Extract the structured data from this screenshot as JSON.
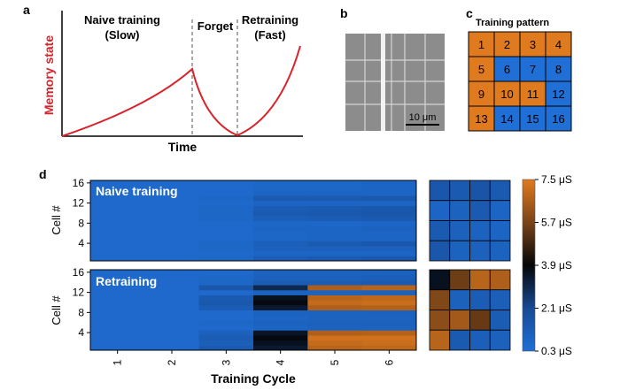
{
  "colors": {
    "curve": "#d8232a",
    "orange": "#e07a1e",
    "blue": "#1f6fd6",
    "grid_line": "#000000"
  },
  "panel_a": {
    "label": "a",
    "phase_naive": "Naive training",
    "phase_naive_sub": "(Slow)",
    "phase_forget": "Forget",
    "phase_retrain": "Retraining",
    "phase_retrain_sub": "(Fast)",
    "ylabel": "Memory state",
    "xlabel": "Time"
  },
  "panel_b": {
    "label": "b",
    "scale_bar": "10 μm"
  },
  "panel_c": {
    "label": "c",
    "title": "Training pattern",
    "cells": [
      {
        "n": "1",
        "c": "orange"
      },
      {
        "n": "2",
        "c": "orange"
      },
      {
        "n": "3",
        "c": "orange"
      },
      {
        "n": "4",
        "c": "orange"
      },
      {
        "n": "5",
        "c": "orange"
      },
      {
        "n": "6",
        "c": "blue"
      },
      {
        "n": "7",
        "c": "blue"
      },
      {
        "n": "8",
        "c": "blue"
      },
      {
        "n": "9",
        "c": "orange"
      },
      {
        "n": "10",
        "c": "orange"
      },
      {
        "n": "11",
        "c": "orange"
      },
      {
        "n": "12",
        "c": "blue"
      },
      {
        "n": "13",
        "c": "orange"
      },
      {
        "n": "14",
        "c": "blue"
      },
      {
        "n": "15",
        "c": "blue"
      },
      {
        "n": "16",
        "c": "blue"
      }
    ]
  },
  "chart_data": {
    "type": "heatmap",
    "label": "d",
    "xlabel": "Training Cycle",
    "ylabel": "Cell #",
    "x": [
      "1",
      "2",
      "3",
      "4",
      "5",
      "6"
    ],
    "yticks": [
      "4",
      "8",
      "12",
      "16"
    ],
    "colorbar": {
      "ticks": [
        "0.3 μS",
        "2.1 μS",
        "3.9 μS",
        "5.7 μS",
        "7.5 μS"
      ],
      "values": [
        0.3,
        2.1,
        3.9,
        5.7,
        7.5
      ],
      "range": [
        0.3,
        7.5
      ]
    },
    "panels": [
      {
        "name": "Naive training",
        "units": "μS",
        "rows_by_cell": {
          "1": [
            0.6,
            0.6,
            0.7,
            1.2,
            1.3,
            1.4
          ],
          "2": [
            0.6,
            0.6,
            0.6,
            0.8,
            0.8,
            0.8
          ],
          "3": [
            0.6,
            0.6,
            0.7,
            1.0,
            1.0,
            1.0
          ],
          "4": [
            0.6,
            0.6,
            0.7,
            1.1,
            1.3,
            1.4
          ],
          "5": [
            0.6,
            0.6,
            0.6,
            0.7,
            0.8,
            0.8
          ],
          "6": [
            0.6,
            0.6,
            0.6,
            0.7,
            0.8,
            0.8
          ],
          "7": [
            0.6,
            0.6,
            0.6,
            0.8,
            0.8,
            0.9
          ],
          "8": [
            0.6,
            0.6,
            0.6,
            0.7,
            0.7,
            0.8
          ],
          "9": [
            0.6,
            0.6,
            0.7,
            1.1,
            1.2,
            1.3
          ],
          "10": [
            0.6,
            0.6,
            0.7,
            1.3,
            1.4,
            1.5
          ],
          "11": [
            0.6,
            0.6,
            0.7,
            1.2,
            1.3,
            1.4
          ],
          "12": [
            0.6,
            0.6,
            0.6,
            0.8,
            0.8,
            0.8
          ],
          "13": [
            0.6,
            0.6,
            0.7,
            1.3,
            1.3,
            1.4
          ],
          "14": [
            0.6,
            0.6,
            0.6,
            0.8,
            0.8,
            0.8
          ],
          "15": [
            0.6,
            0.6,
            0.6,
            0.7,
            0.7,
            0.8
          ],
          "16": [
            0.6,
            0.6,
            0.6,
            0.7,
            0.7,
            0.8
          ]
        },
        "pattern_grid": [
          [
            1.5,
            1.3,
            1.6,
            1.3
          ],
          [
            0.8,
            0.9,
            1.3,
            0.8
          ],
          [
            1.3,
            1.0,
            0.9,
            0.8
          ],
          [
            1.5,
            0.9,
            1.0,
            0.9
          ]
        ]
      },
      {
        "name": "Retraining",
        "units": "μS",
        "rows_by_cell": {
          "1": [
            0.6,
            0.6,
            1.3,
            3.4,
            6.8,
            6.9
          ],
          "2": [
            0.6,
            0.6,
            1.1,
            3.6,
            7.0,
            7.1
          ],
          "3": [
            0.6,
            0.6,
            1.2,
            3.8,
            7.2,
            7.2
          ],
          "4": [
            0.6,
            0.6,
            1.0,
            3.5,
            6.6,
            6.7
          ],
          "5": [
            0.6,
            0.6,
            0.6,
            0.8,
            0.9,
            0.9
          ],
          "6": [
            0.6,
            0.6,
            0.7,
            0.9,
            1.0,
            1.0
          ],
          "7": [
            0.6,
            0.6,
            0.6,
            0.8,
            0.9,
            0.9
          ],
          "8": [
            0.6,
            0.6,
            0.6,
            0.9,
            0.9,
            1.0
          ],
          "9": [
            0.6,
            0.6,
            1.2,
            3.4,
            6.6,
            6.7
          ],
          "10": [
            0.6,
            0.6,
            1.4,
            3.8,
            7.0,
            7.1
          ],
          "11": [
            0.6,
            0.6,
            1.3,
            3.6,
            6.8,
            6.9
          ],
          "12": [
            0.6,
            0.6,
            0.6,
            0.9,
            0.9,
            1.0
          ],
          "13": [
            0.6,
            0.6,
            1.5,
            3.0,
            6.6,
            6.8
          ],
          "14": [
            0.6,
            0.6,
            0.7,
            1.2,
            1.2,
            1.3
          ],
          "15": [
            0.6,
            0.6,
            0.7,
            1.0,
            1.0,
            1.1
          ],
          "16": [
            0.6,
            0.6,
            0.6,
            0.9,
            0.9,
            0.9
          ]
        },
        "pattern_grid": [
          [
            3.6,
            5.5,
            6.8,
            6.6
          ],
          [
            5.8,
            1.0,
            1.2,
            1.1
          ],
          [
            6.0,
            6.4,
            5.4,
            1.2
          ],
          [
            6.8,
            1.3,
            1.1,
            1.0
          ]
        ]
      }
    ]
  }
}
